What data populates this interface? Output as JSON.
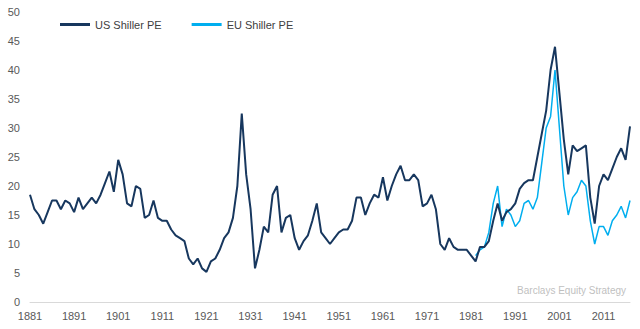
{
  "chart_data": {
    "type": "line",
    "legend": "upper left",
    "grid": false,
    "annotations": [
      {
        "text": "Barclays Equity Strategy"
      }
    ],
    "x": [
      1881,
      1882,
      1883,
      1884,
      1885,
      1886,
      1887,
      1888,
      1889,
      1890,
      1891,
      1892,
      1893,
      1894,
      1895,
      1896,
      1897,
      1898,
      1899,
      1900,
      1901,
      1902,
      1903,
      1904,
      1905,
      1906,
      1907,
      1908,
      1909,
      1910,
      1911,
      1912,
      1913,
      1914,
      1915,
      1916,
      1917,
      1918,
      1919,
      1920,
      1921,
      1922,
      1923,
      1924,
      1925,
      1926,
      1927,
      1928,
      1929,
      1930,
      1931,
      1932,
      1933,
      1934,
      1935,
      1936,
      1937,
      1938,
      1939,
      1940,
      1941,
      1942,
      1943,
      1944,
      1945,
      1946,
      1947,
      1948,
      1949,
      1950,
      1951,
      1952,
      1953,
      1954,
      1955,
      1956,
      1957,
      1958,
      1959,
      1960,
      1961,
      1962,
      1963,
      1964,
      1965,
      1966,
      1967,
      1968,
      1969,
      1970,
      1971,
      1972,
      1973,
      1974,
      1975,
      1976,
      1977,
      1978,
      1979,
      1980,
      1981,
      1982,
      1983,
      1984,
      1985,
      1986,
      1987,
      1988,
      1989,
      1990,
      1991,
      1992,
      1993,
      1994,
      1995,
      1996,
      1997,
      1998,
      1999,
      2000,
      2001,
      2002,
      2003,
      2004,
      2005,
      2006,
      2007,
      2008,
      2009,
      2010,
      2011,
      2012,
      2013,
      2014,
      2015,
      2016,
      2017
    ],
    "series": [
      {
        "name": "US Shiller PE",
        "color": "#17375e",
        "values": [
          18.5,
          16,
          15,
          13.5,
          15.5,
          17.5,
          17.5,
          16,
          17.5,
          17,
          15.5,
          18,
          16,
          17,
          18,
          17,
          18.5,
          20.5,
          22.5,
          19,
          24.5,
          22,
          17,
          16.5,
          20,
          19.5,
          14.5,
          15,
          17.5,
          14.5,
          14,
          14,
          12.5,
          11.5,
          11,
          10.5,
          7.5,
          6.5,
          7.5,
          5.8,
          5.2,
          7,
          7.5,
          9,
          11,
          12,
          14.5,
          20,
          32.5,
          22,
          16,
          5.8,
          9,
          13,
          12,
          18.5,
          20,
          12,
          14.5,
          15,
          11,
          9,
          10.5,
          11.5,
          14,
          17,
          12,
          11,
          10,
          11,
          12,
          12.5,
          12.5,
          14,
          18,
          18,
          15,
          17,
          18.5,
          18,
          21.5,
          17.5,
          20,
          22,
          23.5,
          21,
          21,
          22,
          21,
          16.5,
          17,
          18.5,
          16,
          10,
          9,
          11,
          9.5,
          9,
          9,
          9,
          8,
          7,
          9.5,
          9.5,
          10.5,
          14,
          17,
          14,
          15.5,
          16,
          17,
          19.5,
          20.5,
          21,
          21,
          25,
          29,
          33,
          40,
          44,
          36,
          28,
          22,
          27,
          26,
          26.5,
          27,
          18,
          13.5,
          20,
          22,
          21,
          23,
          25,
          26.5,
          24.5,
          30.3
        ]
      },
      {
        "name": "EU Shiller PE",
        "color": "#00aeef",
        "values": [
          null,
          null,
          null,
          null,
          null,
          null,
          null,
          null,
          null,
          null,
          null,
          null,
          null,
          null,
          null,
          null,
          null,
          null,
          null,
          null,
          null,
          null,
          null,
          null,
          null,
          null,
          null,
          null,
          null,
          null,
          null,
          null,
          null,
          null,
          null,
          null,
          null,
          null,
          null,
          null,
          null,
          null,
          null,
          null,
          null,
          null,
          null,
          null,
          null,
          null,
          null,
          null,
          null,
          null,
          null,
          null,
          null,
          null,
          null,
          null,
          null,
          null,
          null,
          null,
          null,
          null,
          null,
          null,
          null,
          null,
          null,
          null,
          null,
          null,
          null,
          null,
          null,
          null,
          null,
          null,
          null,
          null,
          null,
          null,
          null,
          null,
          null,
          null,
          null,
          null,
          null,
          null,
          null,
          null,
          null,
          null,
          null,
          null,
          null,
          null,
          null,
          8,
          9,
          9.5,
          12,
          17,
          20,
          13,
          16,
          15,
          13,
          14,
          17,
          17.5,
          16,
          18,
          24,
          30,
          32,
          40,
          30,
          20,
          15,
          18,
          19,
          21,
          20,
          14,
          10,
          13,
          13,
          11.5,
          14,
          15,
          16.5,
          14.5,
          17.5
        ]
      }
    ],
    "xlim": [
      1881,
      2017
    ],
    "xticks": [
      1881,
      1891,
      1901,
      1911,
      1921,
      1931,
      1941,
      1951,
      1961,
      1971,
      1981,
      1991,
      2001,
      2011
    ],
    "ylim": [
      0,
      50
    ],
    "yticks": [
      0,
      5,
      10,
      15,
      20,
      25,
      30,
      35,
      40,
      45,
      50
    ]
  }
}
